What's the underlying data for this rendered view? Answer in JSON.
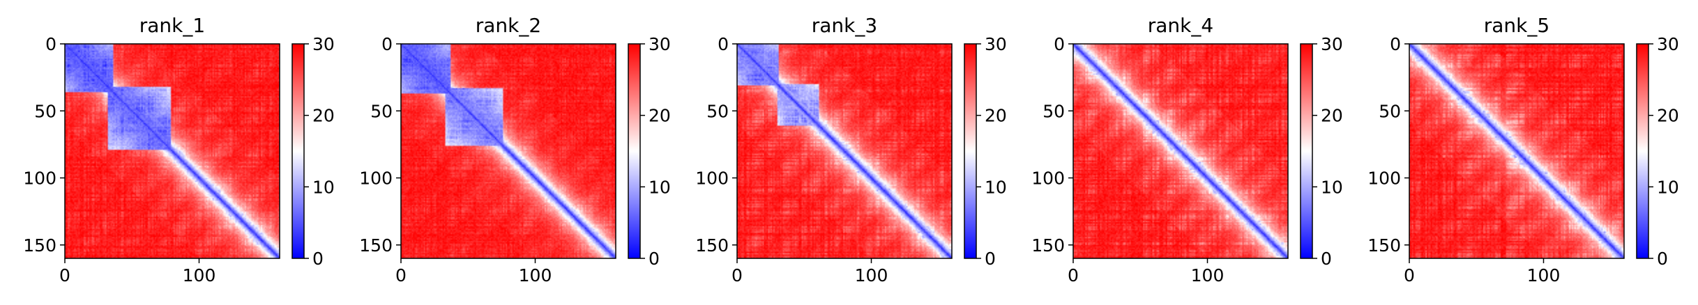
{
  "chart_data": [
    {
      "type": "heatmap",
      "title": "rank_1",
      "size": 160,
      "xlim": [
        0,
        160
      ],
      "ylim": [
        160,
        0
      ],
      "x_ticks": [
        0,
        100
      ],
      "y_ticks": [
        0,
        50,
        100,
        150
      ],
      "colorbar": {
        "min": 0,
        "max": 30,
        "ticks": [
          0,
          10,
          20,
          30
        ],
        "colormap": [
          "#0000ff",
          "#ffffff",
          "#ff0000"
        ]
      },
      "structure": {
        "domains": [
          [
            0,
            35,
            5
          ],
          [
            32,
            78,
            6
          ]
        ],
        "late_speckle": 0.25,
        "seed": 11
      }
    },
    {
      "type": "heatmap",
      "title": "rank_2",
      "size": 160,
      "xlim": [
        0,
        160
      ],
      "ylim": [
        160,
        0
      ],
      "x_ticks": [
        0,
        100
      ],
      "y_ticks": [
        0,
        50,
        100,
        150
      ],
      "colorbar": {
        "min": 0,
        "max": 30,
        "ticks": [
          0,
          10,
          20,
          30
        ],
        "colormap": [
          "#0000ff",
          "#ffffff",
          "#ff0000"
        ]
      },
      "structure": {
        "domains": [
          [
            0,
            36,
            5
          ],
          [
            33,
            75,
            7
          ]
        ],
        "late_speckle": 0.2,
        "seed": 23
      }
    },
    {
      "type": "heatmap",
      "title": "rank_3",
      "size": 160,
      "xlim": [
        0,
        160
      ],
      "ylim": [
        160,
        0
      ],
      "x_ticks": [
        0,
        100
      ],
      "y_ticks": [
        0,
        50,
        100,
        150
      ],
      "colorbar": {
        "min": 0,
        "max": 30,
        "ticks": [
          0,
          10,
          20,
          30
        ],
        "colormap": [
          "#0000ff",
          "#ffffff",
          "#ff0000"
        ]
      },
      "structure": {
        "domains": [
          [
            0,
            30,
            7
          ],
          [
            30,
            60,
            9
          ]
        ],
        "late_speckle": 0.3,
        "seed": 37
      }
    },
    {
      "type": "heatmap",
      "title": "rank_4",
      "size": 160,
      "xlim": [
        0,
        160
      ],
      "ylim": [
        160,
        0
      ],
      "x_ticks": [
        0,
        100
      ],
      "y_ticks": [
        0,
        50,
        100,
        150
      ],
      "colorbar": {
        "min": 0,
        "max": 30,
        "ticks": [
          0,
          10,
          20,
          30
        ],
        "colormap": [
          "#0000ff",
          "#ffffff",
          "#ff0000"
        ]
      },
      "structure": {
        "domains": [],
        "late_speckle": 0.35,
        "seed": 51
      }
    },
    {
      "type": "heatmap",
      "title": "rank_5",
      "size": 160,
      "xlim": [
        0,
        160
      ],
      "ylim": [
        160,
        0
      ],
      "x_ticks": [
        0,
        100
      ],
      "y_ticks": [
        0,
        50,
        100,
        150
      ],
      "colorbar": {
        "min": 0,
        "max": 30,
        "ticks": [
          0,
          10,
          20,
          30
        ],
        "colormap": [
          "#0000ff",
          "#ffffff",
          "#ff0000"
        ]
      },
      "structure": {
        "domains": [],
        "late_speckle": 0.35,
        "seed": 67
      }
    }
  ]
}
